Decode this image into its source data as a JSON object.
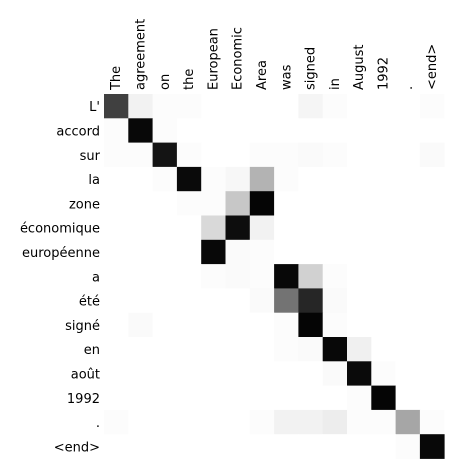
{
  "chart_data": {
    "type": "heatmap",
    "title": "",
    "xlabel": "",
    "ylabel": "",
    "colormap": "greys",
    "colors": {
      "low": "#ffffff",
      "high": "#000000"
    },
    "value_range": [
      0,
      1
    ],
    "x_labels": [
      "The",
      "agreement",
      "on",
      "the",
      "European",
      "Economic",
      "Area",
      "was",
      "signed",
      "in",
      "August",
      "1992",
      ".",
      "<end>"
    ],
    "y_labels": [
      "L'",
      "accord",
      "sur",
      "la",
      "zone",
      "économique",
      "européenne",
      "a",
      "été",
      "signé",
      "en",
      "août",
      "1992",
      ".",
      "<end>"
    ],
    "values": [
      [
        0.75,
        0.05,
        0.01,
        0.01,
        0.0,
        0.0,
        0.0,
        0.0,
        0.04,
        0.01,
        0.0,
        0.0,
        0.0,
        0.01
      ],
      [
        0.01,
        0.97,
        0.01,
        0.0,
        0.0,
        0.0,
        0.0,
        0.0,
        0.0,
        0.0,
        0.0,
        0.0,
        0.0,
        0.0
      ],
      [
        0.01,
        0.01,
        0.92,
        0.01,
        0.0,
        0.0,
        0.01,
        0.01,
        0.02,
        0.01,
        0.0,
        0.0,
        0.0,
        0.02
      ],
      [
        0.0,
        0.0,
        0.01,
        0.96,
        0.01,
        0.03,
        0.3,
        0.01,
        0.0,
        0.0,
        0.0,
        0.0,
        0.0,
        0.0
      ],
      [
        0.0,
        0.0,
        0.0,
        0.01,
        0.01,
        0.22,
        0.98,
        0.0,
        0.0,
        0.0,
        0.0,
        0.0,
        0.0,
        0.0
      ],
      [
        0.0,
        0.0,
        0.0,
        0.0,
        0.15,
        0.95,
        0.05,
        0.0,
        0.0,
        0.0,
        0.0,
        0.0,
        0.0,
        0.0
      ],
      [
        0.0,
        0.0,
        0.0,
        0.0,
        0.97,
        0.02,
        0.01,
        0.0,
        0.0,
        0.0,
        0.0,
        0.0,
        0.0,
        0.0
      ],
      [
        0.0,
        0.0,
        0.0,
        0.0,
        0.01,
        0.02,
        0.01,
        0.97,
        0.18,
        0.01,
        0.0,
        0.0,
        0.0,
        0.0
      ],
      [
        0.0,
        0.0,
        0.0,
        0.0,
        0.0,
        0.0,
        0.02,
        0.55,
        0.85,
        0.02,
        0.0,
        0.0,
        0.0,
        0.0
      ],
      [
        0.0,
        0.02,
        0.0,
        0.0,
        0.0,
        0.0,
        0.0,
        0.01,
        0.98,
        0.01,
        0.0,
        0.0,
        0.0,
        0.0
      ],
      [
        0.0,
        0.0,
        0.0,
        0.0,
        0.0,
        0.0,
        0.0,
        0.01,
        0.02,
        0.97,
        0.06,
        0.0,
        0.0,
        0.0
      ],
      [
        0.0,
        0.0,
        0.0,
        0.0,
        0.0,
        0.0,
        0.0,
        0.0,
        0.0,
        0.02,
        0.96,
        0.01,
        0.0,
        0.0
      ],
      [
        0.0,
        0.0,
        0.0,
        0.0,
        0.0,
        0.0,
        0.0,
        0.0,
        0.0,
        0.0,
        0.01,
        0.98,
        0.0,
        0.0
      ],
      [
        0.01,
        0.0,
        0.0,
        0.0,
        0.0,
        0.0,
        0.01,
        0.05,
        0.05,
        0.07,
        0.01,
        0.01,
        0.35,
        0.01
      ],
      [
        0.0,
        0.0,
        0.0,
        0.0,
        0.0,
        0.0,
        0.0,
        0.0,
        0.0,
        0.0,
        0.0,
        0.0,
        0.01,
        0.97
      ]
    ]
  }
}
